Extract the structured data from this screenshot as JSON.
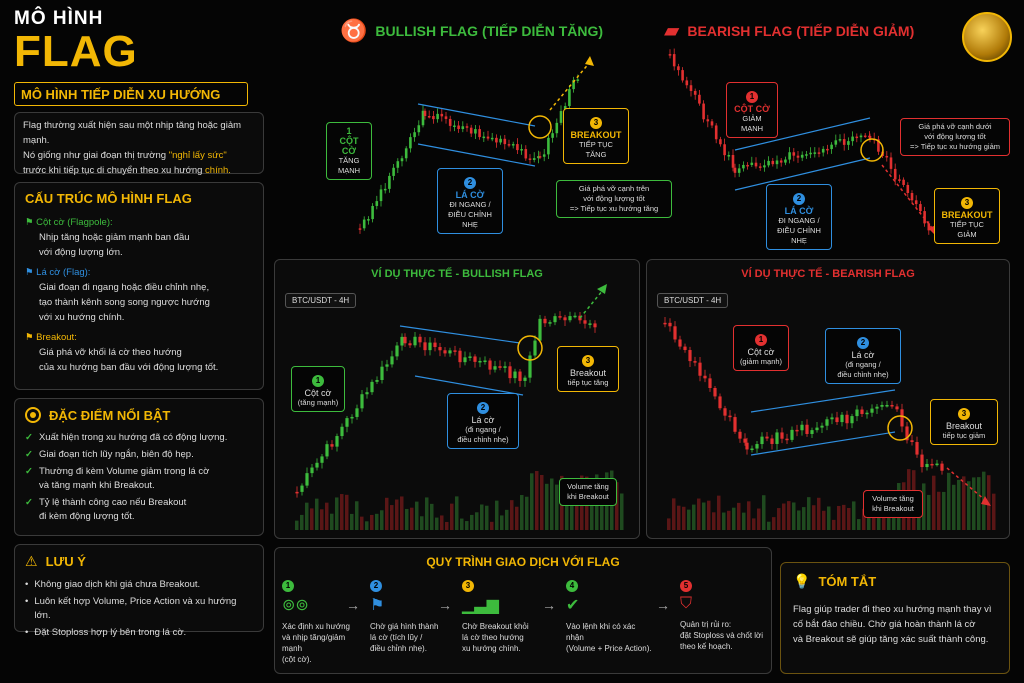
{
  "header": {
    "title_small": "MÔ HÌNH",
    "title_big": "FLAG",
    "subtitle": "MÔ HÌNH TIẾP DIỄN XU HƯỚNG"
  },
  "intro": {
    "line1": "Flag thường xuất hiện sau một nhịp tăng hoặc giảm mạnh.",
    "line2_a": "Nó giống như giai đoạn thị trường ",
    "line2_b": "\"nghỉ lấy sức\"",
    "line3_a": "trước khi tiếp tục di chuyển theo xu hướng ",
    "line3_b": "chính."
  },
  "structure": {
    "title": "CẤU TRÚC MÔ HÌNH FLAG",
    "items": [
      {
        "name": "Cột cờ (Flagpole):",
        "desc1": "Nhịp tăng hoặc giảm mạnh ban đầu",
        "desc2": "với động lượng lớn.",
        "color": "#3dbb3d"
      },
      {
        "name": "Lá cờ (Flag):",
        "desc1": "Giai đoạn đi ngang hoặc điều chỉnh nhẹ,",
        "desc2": "tạo thành kênh song song ngược hướng",
        "desc3": "với xu hướng chính.",
        "color": "#2f8fe0"
      },
      {
        "name": "Breakout:",
        "desc1": "Giá phá vỡ khối lá cờ theo hướng",
        "desc2": "của xu hướng ban đầu với động lượng tốt.",
        "color": "#f2b705"
      }
    ]
  },
  "features": {
    "title": "ĐẶC ĐIỂM NỔI BẬT",
    "items": [
      "Xuất hiện trong xu hướng đã có động lượng.",
      "Giai đoạn tích lũy ngắn, biên độ hẹp.",
      "Thường đi kèm Volume giảm trong lá cờ",
      "và tăng mạnh khi Breakout.",
      "Tỷ lệ thành công cao nếu Breakout",
      "đi kèm động lượng tốt."
    ]
  },
  "notes": {
    "title": "LƯU Ý",
    "items": [
      "Không giao dịch khi giá chưa Breakout.",
      "Luôn kết hợp Volume, Price Action và xu hướng lớn.",
      "Đặt Stoploss hợp lý bên trong lá cờ."
    ]
  },
  "bullish": {
    "title": "BULLISH FLAG (TIẾP DIỄN TĂNG)",
    "pole_num": "1",
    "pole_h": "CỘT CỜ",
    "pole_s": "TĂNG MẠNH",
    "flag_num": "2",
    "flag_h": "LÁ CỜ",
    "flag_s1": "ĐI NGANG /",
    "flag_s2": "ĐIỀU CHỈNH NHẸ",
    "bo_num": "3",
    "bo_h": "BREAKOUT",
    "bo_s": "TIẾP TỤC TĂNG",
    "note1": "Giá phá vỡ cạnh trên",
    "note2": "với động lượng tốt",
    "note3": "=> Tiếp tục xu hướng tăng"
  },
  "bearish": {
    "title": "BEARISH FLAG (TIẾP DIỄN GIẢM)",
    "pole_num": "1",
    "pole_h": "CỘT CỜ",
    "pole_s": "GIẢM MẠNH",
    "flag_num": "2",
    "flag_h": "LÁ CỜ",
    "flag_s1": "ĐI NGANG /",
    "flag_s2": "ĐIỀU CHỈNH NHẸ",
    "bo_num": "3",
    "bo_h": "BREAKOUT",
    "bo_s": "TIẾP TỤC GIẢM",
    "note1": "Giá phá vỡ cạnh dưới",
    "note2": "với động lượng tốt",
    "note3": "=> Tiếp tục xu hướng giảm"
  },
  "ex_bull": {
    "title": "VÍ DỤ THỰC TẾ - BULLISH FLAG",
    "pair": "BTC/USDT - 4H",
    "pole_h": "Cột cờ",
    "pole_s": "(tăng mạnh)",
    "flag_h": "Lá cờ",
    "flag_s1": "(đi ngang /",
    "flag_s2": "điều chỉnh nhẹ)",
    "bo_h": "Breakout",
    "bo_s": "tiếp tục tăng",
    "vol1": "Volume tăng",
    "vol2": "khi Breakout"
  },
  "ex_bear": {
    "title": "VÍ DỤ THỰC TẾ - BEARISH FLAG",
    "pair": "BTC/USDT - 4H",
    "pole_h": "Cột cờ",
    "pole_s": "(giảm mạnh)",
    "flag_h": "Lá cờ",
    "flag_s1": "(đi ngang /",
    "flag_s2": "điều chỉnh nhẹ)",
    "bo_h": "Breakout",
    "bo_s": "tiếp tục giảm",
    "vol1": "Volume tăng",
    "vol2": "khi Breakout"
  },
  "process": {
    "title": "QUY TRÌNH GIAO DỊCH VỚI FLAG",
    "steps": [
      {
        "n": "1",
        "l1": "Xác định xu hướng",
        "l2": "và nhịp tăng/giảm mạnh",
        "l3": "(cột cờ)."
      },
      {
        "n": "2",
        "l1": "Chờ giá hình thành",
        "l2": "lá cờ (tích lũy /",
        "l3": "điều chỉnh nhẹ)."
      },
      {
        "n": "3",
        "l1": "Chờ Breakout khỏi",
        "l2": "lá cờ theo hướng",
        "l3": "xu hướng chính."
      },
      {
        "n": "4",
        "l1": "Vào lệnh khi có xác nhận",
        "l2": "(Volume + Price Action).",
        "l3": ""
      },
      {
        "n": "5",
        "l1": "Quản trị rủi ro:",
        "l2": "đặt Stoploss và chốt lời",
        "l3": "theo kế hoạch."
      }
    ]
  },
  "summary": {
    "title": "TÓM TẮT",
    "l1": "Flag giúp trader đi theo xu hướng mạnh thay vì",
    "l2": "cố bắt đảo chiều. Chờ giá hoàn thành lá cờ",
    "l3": "và Breakout sẽ giúp tăng xác suất thành công."
  },
  "colors": {
    "gold": "#f2b705",
    "green": "#3dbb3d",
    "red": "#e23030",
    "blue": "#2f8fe0"
  }
}
